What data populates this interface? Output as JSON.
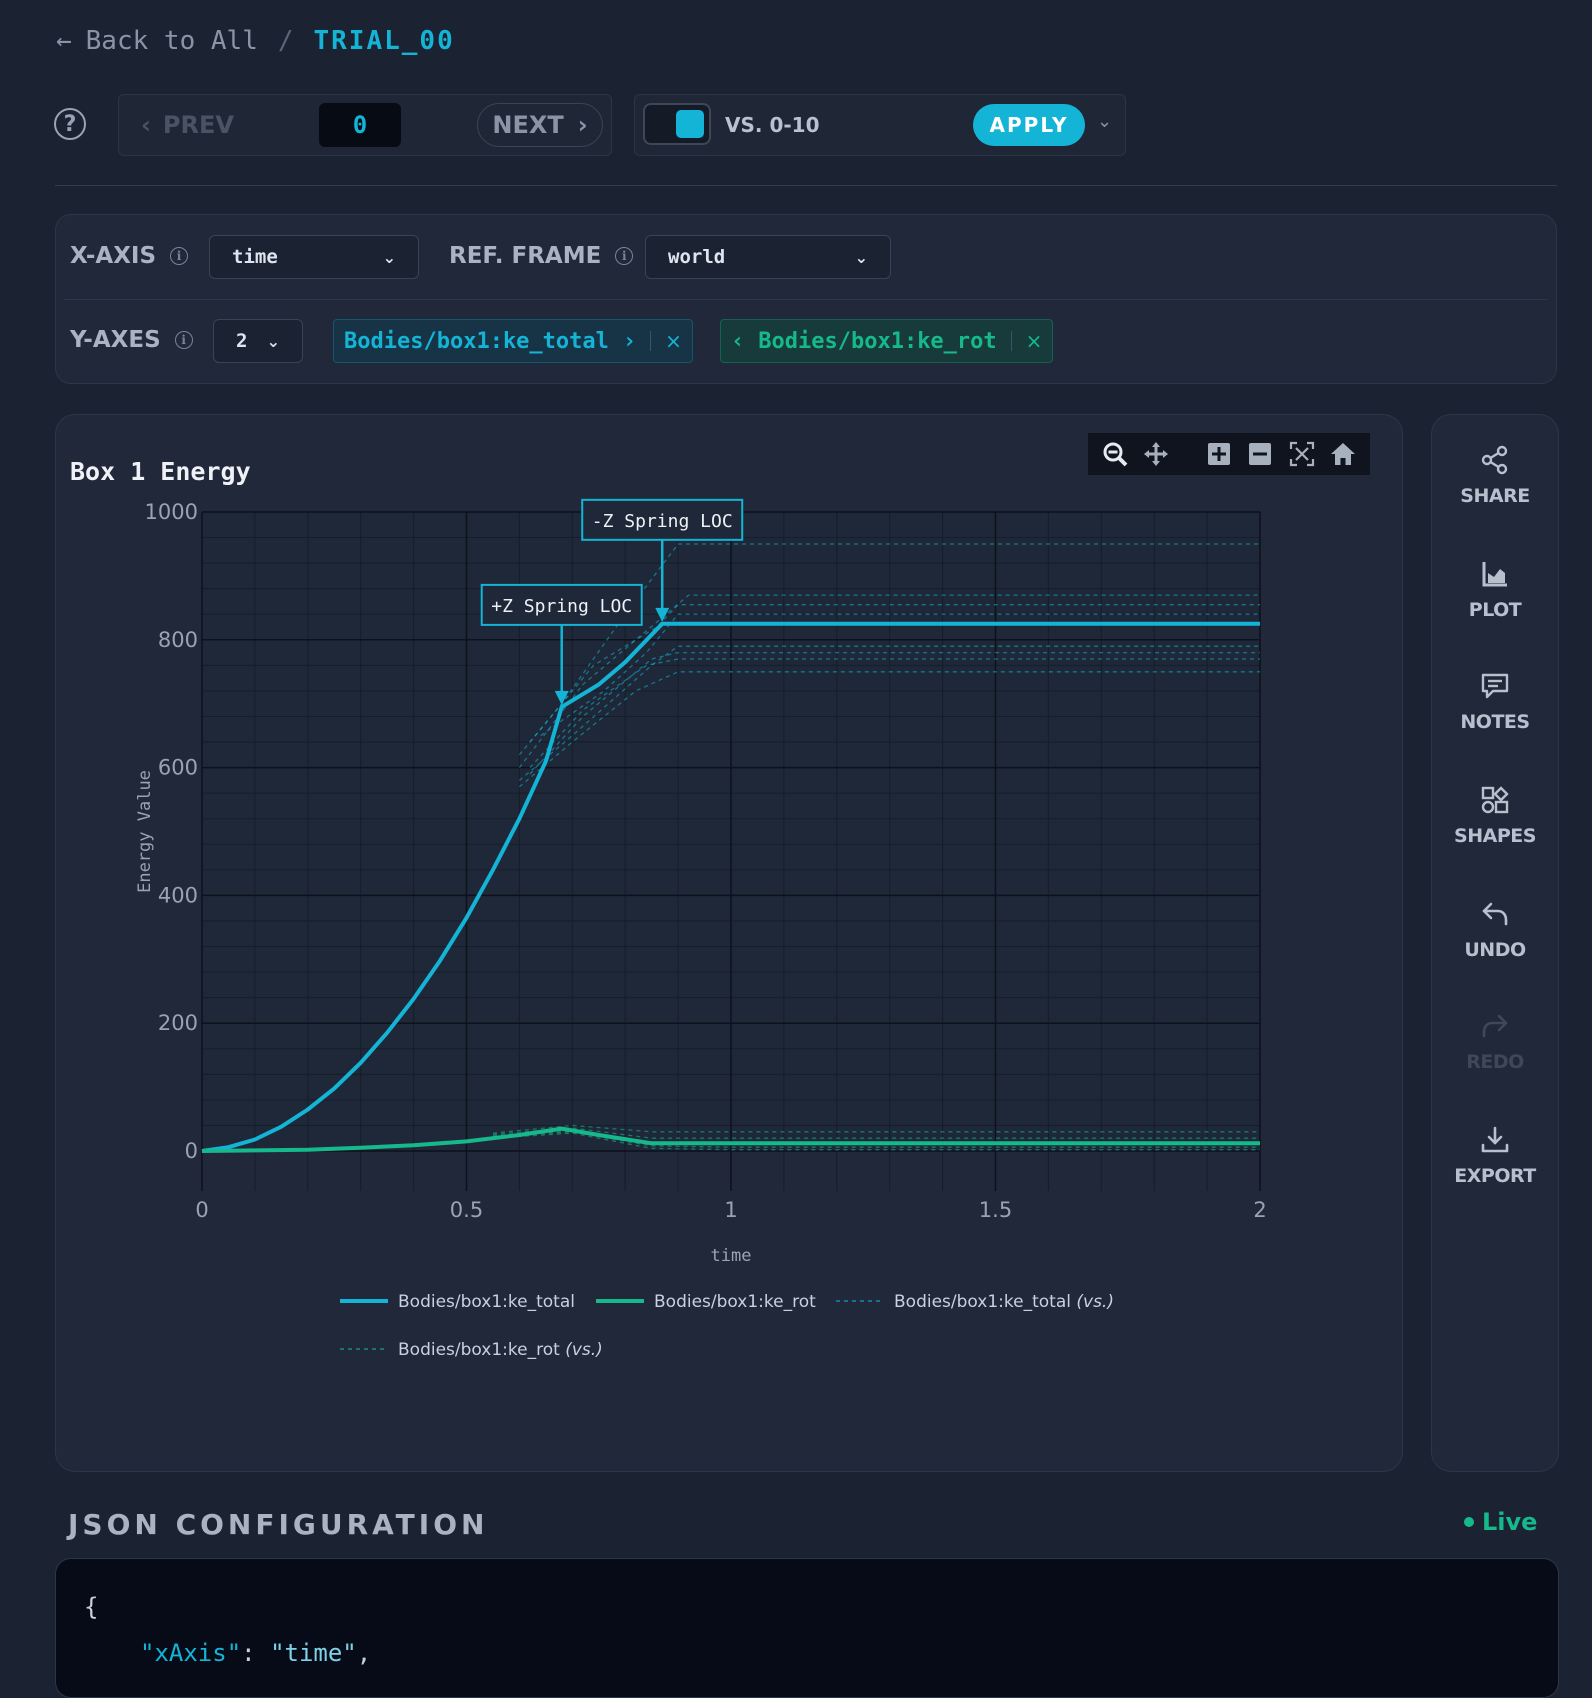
{
  "breadcrumb": {
    "back_label": "Back to All",
    "separator": "/",
    "current": "TRIAL_00"
  },
  "nav": {
    "prev_label": "PREV",
    "frame_value": "0",
    "next_label": "NEXT"
  },
  "compare": {
    "toggle_on": true,
    "vs_label": "VS. 0-10",
    "apply_label": "APPLY"
  },
  "axes": {
    "x_axis_label": "X-AXIS",
    "x_axis_value": "time",
    "ref_frame_label": "REF. FRAME",
    "ref_frame_value": "world",
    "y_axes_label": "Y-AXES",
    "y_axes_count": "2",
    "y_pills": [
      {
        "label": "Bodies/box1:ke_total",
        "color": "#14b4d6"
      },
      {
        "label": "Bodies/box1:ke_rot",
        "color": "#16b98c"
      }
    ]
  },
  "chart": {
    "title": "Box 1 Energy",
    "annotations": [
      "+Z Spring LOC",
      "-Z Spring LOC"
    ],
    "legend": {
      "s1": "Bodies/box1:ke_total",
      "s2": "Bodies/box1:ke_rot",
      "s3_name": "Bodies/box1:ke_total",
      "s4_name": "Bodies/box1:ke_rot",
      "vs_suffix": "vs."
    }
  },
  "chart_data": {
    "type": "line",
    "title": "Box 1 Energy",
    "xlabel": "time",
    "ylabel": "Energy Value",
    "xlim": [
      0,
      2
    ],
    "ylim": [
      0,
      1000
    ],
    "x_ticks": [
      "0",
      "0.5",
      "1",
      "1.5",
      "2"
    ],
    "y_ticks": [
      "0",
      "200",
      "400",
      "600",
      "800",
      "1000"
    ],
    "grid": true,
    "legend_position": "bottom",
    "annotations": [
      {
        "text": "+Z Spring LOC",
        "x": 0.68,
        "y": 695
      },
      {
        "text": "-Z Spring LOC",
        "x": 0.87,
        "y": 825
      }
    ],
    "series": [
      {
        "name": "Bodies/box1:ke_total",
        "color": "#14b4d6",
        "style": "solid",
        "x": [
          0,
          0.05,
          0.1,
          0.15,
          0.2,
          0.25,
          0.3,
          0.35,
          0.4,
          0.45,
          0.5,
          0.55,
          0.6,
          0.65,
          0.68,
          0.75,
          0.8,
          0.87,
          1.0,
          1.5,
          2.0
        ],
        "y": [
          0,
          6,
          18,
          38,
          65,
          98,
          138,
          185,
          238,
          298,
          365,
          440,
          520,
          610,
          695,
          730,
          765,
          825,
          825,
          825,
          825
        ]
      },
      {
        "name": "Bodies/box1:ke_rot",
        "color": "#16b98c",
        "style": "solid",
        "x": [
          0,
          0.1,
          0.2,
          0.3,
          0.4,
          0.5,
          0.6,
          0.68,
          0.75,
          0.85,
          1.0,
          1.5,
          2.0
        ],
        "y": [
          0,
          1,
          2,
          5,
          9,
          15,
          25,
          35,
          25,
          12,
          12,
          12,
          12
        ]
      },
      {
        "name": "Bodies/box1:ke_total (vs.)",
        "color": "#14b4d6",
        "style": "dashed",
        "runs": [
          {
            "x": [
              0.6,
              0.68,
              0.8,
              0.9,
              2.0
            ],
            "y": [
              620,
              700,
              840,
              950,
              950
            ]
          },
          {
            "x": [
              0.6,
              0.72,
              0.82,
              0.92,
              2.0
            ],
            "y": [
              600,
              730,
              800,
              870,
              870
            ]
          },
          {
            "x": [
              0.62,
              0.74,
              0.86,
              0.9,
              2.0
            ],
            "y": [
              640,
              760,
              820,
              855,
              855
            ]
          },
          {
            "x": [
              0.64,
              0.76,
              0.84,
              0.9,
              2.0
            ],
            "y": [
              650,
              720,
              780,
              840,
              840
            ]
          },
          {
            "x": [
              0.6,
              0.7,
              0.85,
              0.9,
              2.0
            ],
            "y": [
              580,
              650,
              760,
              790,
              790
            ]
          },
          {
            "x": [
              0.62,
              0.72,
              0.85,
              0.9,
              2.0
            ],
            "y": [
              590,
              680,
              770,
              780,
              780
            ]
          },
          {
            "x": [
              0.62,
              0.72,
              0.84,
              0.9,
              2.0
            ],
            "y": [
              600,
              690,
              760,
              770,
              770
            ]
          },
          {
            "x": [
              0.6,
              0.7,
              0.82,
              0.9,
              2.0
            ],
            "y": [
              570,
              640,
              720,
              750,
              750
            ]
          }
        ]
      },
      {
        "name": "Bodies/box1:ke_rot (vs.)",
        "color": "#16b98c",
        "style": "dashed",
        "runs": [
          {
            "x": [
              0.55,
              0.7,
              0.85,
              1.0,
              2.0
            ],
            "y": [
              28,
              40,
              30,
              30,
              30
            ]
          },
          {
            "x": [
              0.55,
              0.7,
              0.85,
              1.0,
              2.0
            ],
            "y": [
              26,
              36,
              20,
              20,
              20
            ]
          },
          {
            "x": [
              0.55,
              0.7,
              0.85,
              1.0,
              2.0
            ],
            "y": [
              24,
              32,
              14,
              14,
              14
            ]
          },
          {
            "x": [
              0.55,
              0.7,
              0.85,
              1.0,
              2.0
            ],
            "y": [
              22,
              30,
              8,
              6,
              6
            ]
          },
          {
            "x": [
              0.55,
              0.7,
              0.85,
              1.0,
              2.0
            ],
            "y": [
              20,
              28,
              4,
              2,
              2
            ]
          }
        ]
      }
    ]
  },
  "sidebar": {
    "share": "SHARE",
    "plot": "PLOT",
    "notes": "NOTES",
    "shapes": "SHAPES",
    "undo": "UNDO",
    "redo": "REDO",
    "export": "EXPORT"
  },
  "json_config": {
    "title": "JSON CONFIGURATION",
    "status": "Live",
    "line1": "{",
    "line2_key": "\"xAxis\"",
    "line2_sep": ": ",
    "line2_val": "\"time\"",
    "line2_end": ","
  }
}
